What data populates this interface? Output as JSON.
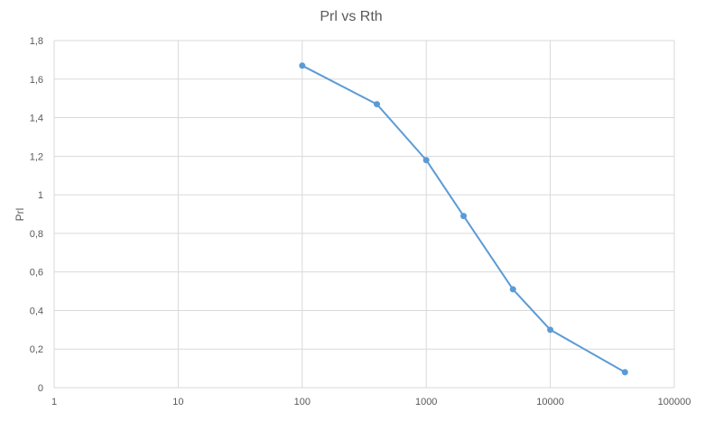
{
  "chart_data": {
    "type": "scatter",
    "title": "Prl vs Rth",
    "xlabel": "",
    "ylabel": "Prl",
    "x_scale": "log",
    "xlim": [
      1,
      100000
    ],
    "ylim": [
      0,
      1.8
    ],
    "grid": true,
    "x_ticks": [
      "1",
      "10",
      "100",
      "1000",
      "10000",
      "100000"
    ],
    "y_ticks": [
      "0",
      "0,2",
      "0,4",
      "0,6",
      "0,8",
      "1",
      "1,2",
      "1,4",
      "1,6",
      "1,8"
    ],
    "series": [
      {
        "color": "#5b9bd5",
        "x": [
          100,
          400,
          1000,
          2000,
          5000,
          10000,
          40000
        ],
        "y": [
          1.67,
          1.47,
          1.18,
          0.89,
          0.51,
          0.3,
          0.08
        ]
      }
    ]
  }
}
